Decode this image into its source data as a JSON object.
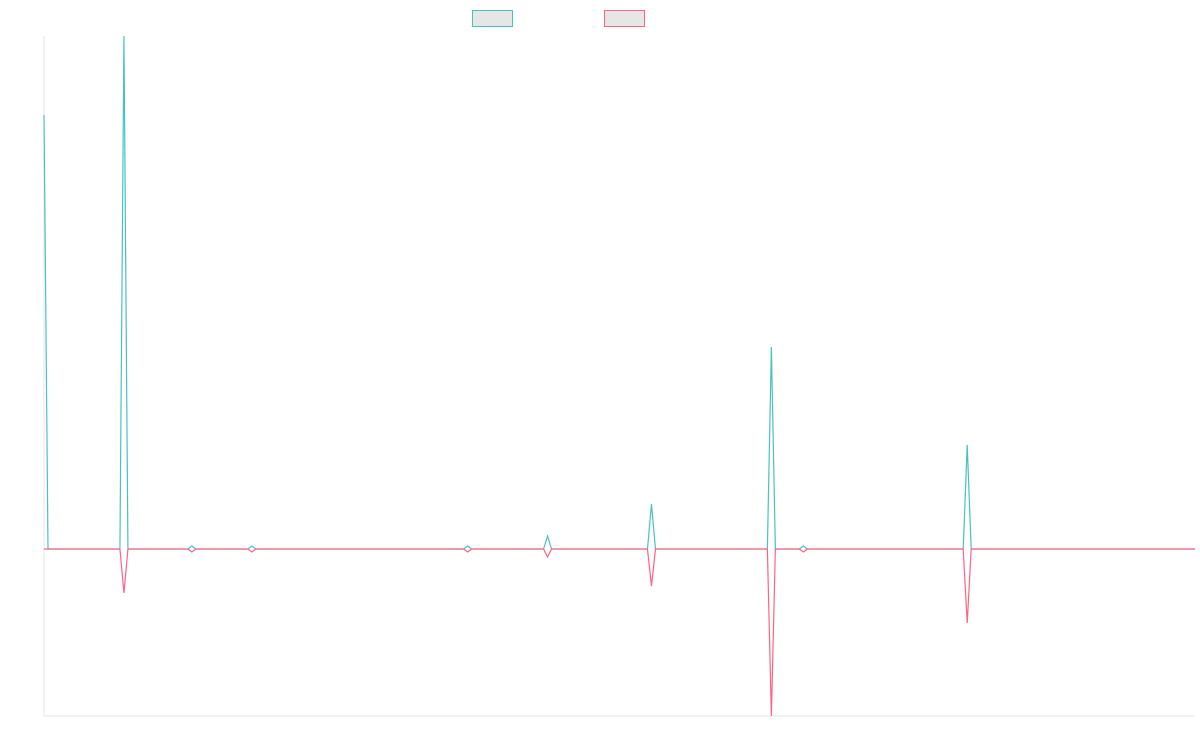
{
  "chart_data": {
    "type": "line",
    "x": [
      0,
      1,
      19,
      20,
      21,
      36,
      37,
      38,
      51,
      52,
      53,
      105,
      106,
      107,
      125,
      126,
      127,
      151,
      152,
      153,
      181,
      182,
      183,
      189,
      190,
      191,
      230,
      231,
      232,
      288
    ],
    "series": [
      {
        "color": "#4bc0c0",
        "values": [
          434,
          0,
          0,
          513,
          0,
          0,
          3,
          0,
          0,
          3,
          0,
          0,
          3,
          0,
          0,
          13,
          0,
          0,
          45,
          0,
          0,
          202,
          0,
          0,
          3,
          0,
          0,
          104,
          0,
          0
        ]
      },
      {
        "color": "#ff6384",
        "values": [
          0,
          0,
          0,
          -44,
          0,
          0,
          -3,
          0,
          0,
          -3,
          0,
          0,
          -3,
          0,
          0,
          -8,
          0,
          0,
          -37,
          0,
          0,
          -167,
          0,
          0,
          -3,
          0,
          0,
          -74,
          0,
          0
        ]
      }
    ],
    "xlim": [
      0,
      288
    ],
    "ylim": [
      -167,
      513
    ],
    "grid": false,
    "legend": "top"
  }
}
